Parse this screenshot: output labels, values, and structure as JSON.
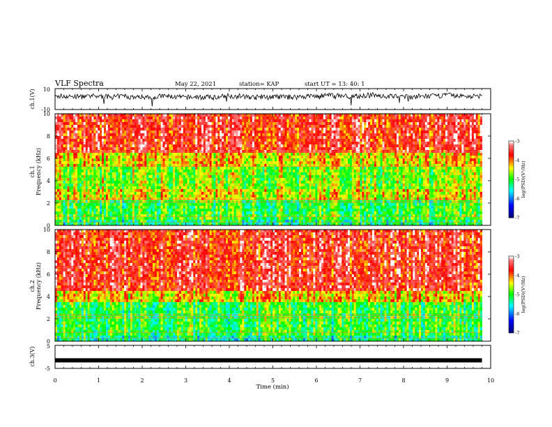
{
  "header": {
    "title": "VLF Spectra",
    "date": "May 22, 2021",
    "station": "station= KAP",
    "start": "start  UT  =  13: 40: 1"
  },
  "colors": {
    "spectrum_low": "#000080",
    "spectrum_mid": "#00ff00",
    "spectrum_high": "#ff0000",
    "spectrum_top": "#ffffff",
    "trace": "#000000"
  },
  "chart_data": [
    {
      "type": "line",
      "panel": "ch1-time-series",
      "ylabel": "ch.1(V)",
      "ylim": [
        -10,
        10
      ],
      "yticks": [
        "10",
        "-10"
      ],
      "xlim": [
        0,
        10
      ],
      "data_end_min": 9.8,
      "baseline_v": 2.5,
      "noise_amplitude_v": 3,
      "series": [
        {
          "values_note_free": true
        }
      ]
    },
    {
      "type": "heatmap",
      "panel": "ch1-spectrogram",
      "ylabel": "ch.1\nFrequency (kHz)",
      "ylabel_channel": "ch.1",
      "ylabel_quantity": "Frequency (kHz)",
      "ylim": [
        0,
        10
      ],
      "yticks": [
        "0",
        "2",
        "4",
        "6",
        "8",
        "10"
      ],
      "xlim": [
        0,
        10
      ],
      "colorbar": {
        "label": "log(PSD)(V²/Hz)",
        "range": [
          -7,
          -3
        ],
        "ticks": [
          "-3",
          "-4",
          "-5",
          "-6",
          "-7"
        ]
      },
      "bands_khz": [
        {
          "from": 0,
          "to": 0.5,
          "level": -5.2
        },
        {
          "from": 0.5,
          "to": 1.1,
          "level": -4.9
        },
        {
          "from": 1.1,
          "to": 2.3,
          "level": -5.0
        },
        {
          "from": 2.3,
          "to": 3.3,
          "level": -4.4
        },
        {
          "from": 3.3,
          "to": 5.2,
          "level": -4.7
        },
        {
          "from": 5.2,
          "to": 6.5,
          "level": -4.3
        },
        {
          "from": 6.5,
          "to": 10,
          "level": -3.6
        }
      ]
    },
    {
      "type": "heatmap",
      "panel": "ch2-spectrogram",
      "ylabel_channel": "ch.2",
      "ylabel_quantity": "Frequency (kHz)",
      "ylim": [
        0,
        10
      ],
      "yticks": [
        "0",
        "2",
        "4",
        "6",
        "8",
        "10"
      ],
      "xlim": [
        0,
        10
      ],
      "colorbar": {
        "label": "log(PSD)(V²/Hz)",
        "range": [
          -7,
          -3
        ],
        "ticks": [
          "-3",
          "-4",
          "-5",
          "-6",
          "-7"
        ]
      },
      "bands_khz": [
        {
          "from": 0,
          "to": 0.5,
          "level": -5.3
        },
        {
          "from": 0.5,
          "to": 2.0,
          "level": -5.0
        },
        {
          "from": 2.0,
          "to": 3.4,
          "level": -5.0
        },
        {
          "from": 3.4,
          "to": 4.5,
          "level": -4.3
        },
        {
          "from": 4.5,
          "to": 10,
          "level": -3.6
        }
      ]
    },
    {
      "type": "line",
      "panel": "ch3-time-series",
      "ylabel": "ch.3(V)",
      "ylim": [
        -5,
        5
      ],
      "yticks": [
        "5",
        "-5"
      ],
      "xlim": [
        0,
        10
      ],
      "data_end_min": 9.8,
      "constant_v": -1.5,
      "xlabel": "Time (min)",
      "xticks": [
        "0",
        "1",
        "2",
        "3",
        "4",
        "5",
        "6",
        "7",
        "8",
        "9",
        "10"
      ]
    }
  ]
}
